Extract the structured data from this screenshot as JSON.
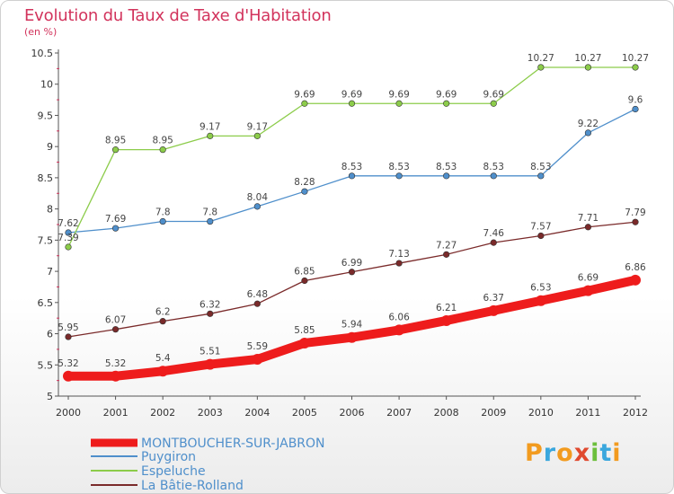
{
  "title": "Evolution du Taux de Taxe d'Habitation",
  "unit": "(en %)",
  "logo": {
    "text": "Proxiti",
    "letters": [
      "P",
      "r",
      "o",
      "x",
      "i",
      "t",
      "i"
    ],
    "colors": [
      "#f29b1f",
      "#3aa7dd",
      "#f29b1f",
      "#e04a2f",
      "#6cbf3c",
      "#3aa7dd",
      "#f29b1f"
    ]
  },
  "chart_data": {
    "type": "line",
    "title": "Evolution du Taux de Taxe d'Habitation",
    "ylabel": "(en %)",
    "x": [
      "2000",
      "2001",
      "2002",
      "2003",
      "2004",
      "2005",
      "2006",
      "2007",
      "2008",
      "2009",
      "2010",
      "2011",
      "2012"
    ],
    "ylim": [
      5,
      10.5
    ],
    "yticks": [
      "5",
      "5.5",
      "6",
      "6.5",
      "7",
      "7.5",
      "8",
      "8.5",
      "9",
      "9.5",
      "10",
      "10.5"
    ],
    "grid": false,
    "legend": "bottom-left",
    "series": [
      {
        "name": "MONTBOUCHER-SUR-JABRON",
        "color": "#ee1c1c",
        "labels": [
          "5.32",
          "5.32",
          "5.4",
          "5.51",
          "5.59",
          "5.85",
          "5.94",
          "6.06",
          "6.21",
          "6.37",
          "6.53",
          "6.69",
          "6.86"
        ],
        "values": [
          5.32,
          5.32,
          5.4,
          5.51,
          5.59,
          5.85,
          5.94,
          6.06,
          6.21,
          6.37,
          6.53,
          6.69,
          6.86
        ]
      },
      {
        "name": "Puygiron",
        "color": "#4f8fcb",
        "labels": [
          "7.62",
          "7.69",
          "7.8",
          "7.8",
          "8.04",
          "8.28",
          "8.53",
          "8.53",
          "8.53",
          "8.53",
          "8.53",
          "9.22",
          "9.6"
        ],
        "values": [
          7.62,
          7.69,
          7.8,
          7.8,
          8.04,
          8.28,
          8.53,
          8.53,
          8.53,
          8.53,
          8.53,
          9.22,
          9.6
        ]
      },
      {
        "name": "Espeluche",
        "color": "#8ccc4a",
        "labels": [
          "7.39",
          "8.95",
          "8.95",
          "9.17",
          "9.17",
          "9.69",
          "9.69",
          "9.69",
          "9.69",
          "9.69",
          "10.27",
          "10.27",
          "10.27"
        ],
        "values": [
          7.39,
          8.95,
          8.95,
          9.17,
          9.17,
          9.69,
          9.69,
          9.69,
          9.69,
          9.69,
          10.27,
          10.27,
          10.27
        ]
      },
      {
        "name": "La Bâtie-Rolland",
        "color": "#7a2a2a",
        "labels": [
          "5.95",
          "6.07",
          "6.2",
          "6.32",
          "6.48",
          "6.85",
          "6.99",
          "7.13",
          "7.27",
          "7.46",
          "7.57",
          "7.71",
          "7.79"
        ],
        "values": [
          5.95,
          6.07,
          6.2,
          6.32,
          6.48,
          6.85,
          6.99,
          7.13,
          7.27,
          7.46,
          7.57,
          7.71,
          7.79
        ]
      }
    ]
  }
}
